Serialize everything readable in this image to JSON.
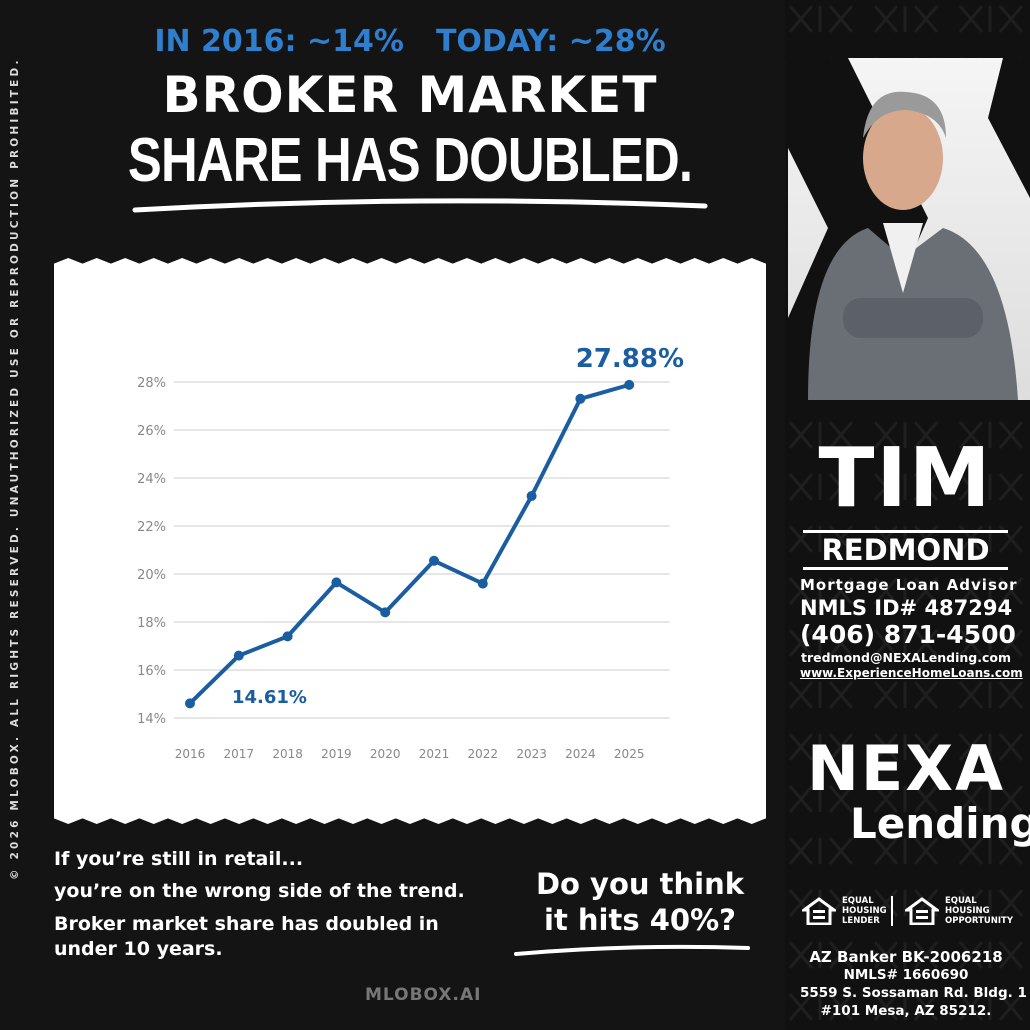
{
  "copyright": "© 2026 MLOBOX. ALL RIGHTS RESERVED. UNAUTHORIZED USE OR REPRODUCTION PROHIBITED.",
  "headline": {
    "stat_2016": "IN 2016: ~14%",
    "stat_today": "TODAY: ~28%",
    "line1": "BROKER MARKET",
    "line2": "SHARE HAS DOUBLED."
  },
  "colors": {
    "accent": "#2e7fd0",
    "line": "#1a5da0",
    "background": "#141414"
  },
  "chart_data": {
    "type": "line",
    "categories": [
      "2016",
      "2017",
      "2018",
      "2019",
      "2020",
      "2021",
      "2022",
      "2023",
      "2024",
      "2025"
    ],
    "series": [
      {
        "values": [
          14.61,
          16.6,
          17.4,
          19.65,
          18.4,
          20.55,
          19.6,
          23.25,
          27.3,
          27.88
        ]
      }
    ],
    "yticks": [
      "14%",
      "16%",
      "18%",
      "20%",
      "22%",
      "24%",
      "26%",
      "28%"
    ],
    "ylim": [
      14,
      28
    ],
    "grid": true,
    "annotations": [
      {
        "year": "2016",
        "text": "14.61%"
      },
      {
        "year": "2025",
        "text": "27.88%"
      }
    ]
  },
  "body": {
    "line1": "If you’re still in retail...",
    "line2": "you’re on the wrong side of the trend.",
    "line3": "Broker market share has doubled in",
    "line4": "under 10 years."
  },
  "question": {
    "line1": "Do you think",
    "line2": "it hits 40%?"
  },
  "footer_brand": "MLOBOX.AI",
  "agent": {
    "first": "TIM",
    "last": "REDMOND",
    "title": "Mortgage Loan Advisor",
    "nmls": "NMLS ID# 487294",
    "phone": "(406) 871-4500",
    "email": "tredmond@NEXALending.com",
    "website": "www.ExperienceHomeLoans.com"
  },
  "company": {
    "logo_top": "NEXA",
    "logo_bottom": "Lending",
    "eq1": [
      "EQUAL",
      "HOUSING",
      "LENDER"
    ],
    "eq2": [
      "EQUAL",
      "HOUSING",
      "OPPORTUNITY"
    ],
    "license": "AZ Banker BK-2006218",
    "nmls": "NMLS# 1660690",
    "address1": "5559 S. Sossaman Rd. Bldg. 1",
    "address2": "#101 Mesa, AZ 85212."
  },
  "icons": {
    "equal_housing": "house-equal-icon"
  }
}
